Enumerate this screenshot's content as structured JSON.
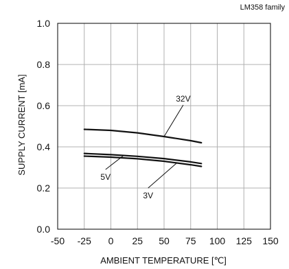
{
  "chart_data": {
    "type": "line",
    "title": "",
    "family_note": "LM358  family",
    "xlabel": "AMBIENT TEMPERATURE [℃]",
    "ylabel": "SUPPLY CURRENT [mA]",
    "xlim": [
      -50,
      150
    ],
    "ylim": [
      0.0,
      1.0
    ],
    "x_ticks": [
      "-50",
      "-25",
      "0",
      "25",
      "50",
      "75",
      "100",
      "125",
      "150"
    ],
    "y_ticks": [
      "0.0",
      "0.2",
      "0.4",
      "0.6",
      "0.8",
      "1.0"
    ],
    "grid": true,
    "legend": "none",
    "series": [
      {
        "name": "32V",
        "x": [
          -25,
          0,
          25,
          50,
          75,
          85
        ],
        "y": [
          0.485,
          0.48,
          0.468,
          0.45,
          0.43,
          0.42
        ]
      },
      {
        "name": "5V",
        "x": [
          -25,
          0,
          25,
          50,
          75,
          85
        ],
        "y": [
          0.368,
          0.362,
          0.354,
          0.343,
          0.327,
          0.319
        ]
      },
      {
        "name": "3V",
        "x": [
          -25,
          0,
          25,
          50,
          75,
          85
        ],
        "y": [
          0.355,
          0.35,
          0.342,
          0.33,
          0.313,
          0.305
        ]
      }
    ],
    "annotations": [
      {
        "text": "32V",
        "series": 0,
        "at_x": 50,
        "label_x": 68,
        "label_y": 0.62
      },
      {
        "text": "5V",
        "series": 1,
        "at_x": 12,
        "label_x": -5,
        "label_y": 0.24
      },
      {
        "text": "3V",
        "series": 2,
        "at_x": 62,
        "label_x": 35,
        "label_y": 0.15
      }
    ]
  }
}
